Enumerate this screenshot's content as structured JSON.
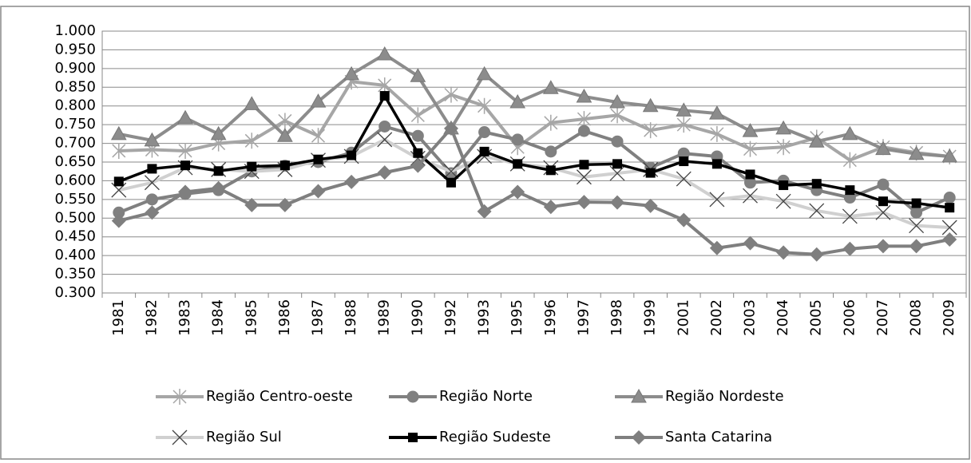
{
  "chart_data": {
    "type": "line",
    "categories": [
      "1981",
      "1982",
      "1983",
      "1984",
      "1985",
      "1986",
      "1987",
      "1988",
      "1989",
      "1990",
      "1992",
      "1993",
      "1995",
      "1996",
      "1997",
      "1998",
      "1999",
      "2001",
      "2002",
      "2003",
      "2004",
      "2005",
      "2006",
      "2007",
      "2008",
      "2009"
    ],
    "ylim": [
      0.3,
      1.0
    ],
    "yticks": [
      {
        "value": 0.3,
        "label": "0.300"
      },
      {
        "value": 0.35,
        "label": "0.350"
      },
      {
        "value": 0.4,
        "label": "0.400"
      },
      {
        "value": 0.45,
        "label": "0.450"
      },
      {
        "value": 0.5,
        "label": "0.500"
      },
      {
        "value": 0.55,
        "label": "0.550"
      },
      {
        "value": 0.6,
        "label": "0.600"
      },
      {
        "value": 0.65,
        "label": "0.650"
      },
      {
        "value": 0.7,
        "label": "0.700"
      },
      {
        "value": 0.75,
        "label": "0.750"
      },
      {
        "value": 0.8,
        "label": "0.800"
      },
      {
        "value": 0.85,
        "label": "0.850"
      },
      {
        "value": 0.9,
        "label": "0.900"
      },
      {
        "value": 0.95,
        "label": "0.950"
      },
      {
        "value": 1.0,
        "label": "1.000"
      }
    ],
    "grid": true,
    "legend": "bottom",
    "series": [
      {
        "name": "Região Centro-oeste",
        "color": "#a6a6a6",
        "marker": "asterisk",
        "values": [
          0.68,
          0.683,
          0.68,
          0.7,
          0.707,
          0.76,
          0.72,
          0.865,
          0.855,
          0.775,
          0.83,
          0.8,
          0.69,
          0.755,
          0.765,
          0.775,
          0.735,
          0.75,
          0.725,
          0.685,
          0.69,
          0.715,
          0.655,
          0.69,
          0.675,
          0.665
        ]
      },
      {
        "name": "Região Norte",
        "color": "#808080",
        "marker": "circle",
        "values": [
          0.515,
          0.55,
          0.565,
          0.575,
          0.625,
          0.64,
          0.65,
          0.675,
          0.745,
          0.72,
          0.62,
          0.73,
          0.71,
          0.678,
          0.733,
          0.705,
          0.635,
          0.673,
          0.665,
          0.595,
          0.6,
          0.575,
          0.555,
          0.59,
          0.515,
          0.555
        ]
      },
      {
        "name": "Região Nordeste",
        "color": "#8c8c8c",
        "marker": "triangle",
        "values": [
          0.725,
          0.708,
          0.768,
          0.725,
          0.805,
          0.72,
          0.812,
          0.885,
          0.938,
          0.88,
          0.74,
          0.885,
          0.81,
          0.848,
          0.825,
          0.81,
          0.8,
          0.788,
          0.78,
          0.733,
          0.74,
          0.705,
          0.725,
          0.685,
          0.672,
          0.665
        ]
      },
      {
        "name": "Região Sul",
        "color": "#d0d0d0",
        "marker": "x",
        "values": [
          0.575,
          0.595,
          0.635,
          0.63,
          0.625,
          0.63,
          0.655,
          0.665,
          0.71,
          0.66,
          0.625,
          0.665,
          0.645,
          0.635,
          0.61,
          0.62,
          0.63,
          0.605,
          0.55,
          0.56,
          0.545,
          0.52,
          0.505,
          0.515,
          0.48,
          0.475
        ]
      },
      {
        "name": "Região Sudeste",
        "color": "#000000",
        "marker": "square",
        "values": [
          0.598,
          0.632,
          0.641,
          0.626,
          0.638,
          0.641,
          0.657,
          0.668,
          0.827,
          0.674,
          0.595,
          0.678,
          0.645,
          0.628,
          0.643,
          0.645,
          0.621,
          0.652,
          0.645,
          0.617,
          0.588,
          0.592,
          0.575,
          0.545,
          0.54,
          0.528
        ]
      },
      {
        "name": "Santa Catarina",
        "color": "#7f7f7f",
        "marker": "diamond",
        "values": [
          0.493,
          0.515,
          0.57,
          0.58,
          0.535,
          0.535,
          0.572,
          0.597,
          0.622,
          0.64,
          0.74,
          0.518,
          0.57,
          0.53,
          0.543,
          0.542,
          0.533,
          0.495,
          0.42,
          0.433,
          0.408,
          0.403,
          0.418,
          0.425,
          0.425,
          0.443
        ]
      }
    ]
  }
}
